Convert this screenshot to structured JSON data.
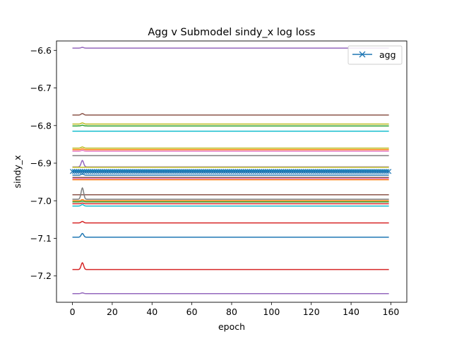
{
  "chart_data": {
    "type": "line",
    "title": "Agg v Submodel sindy_x log loss",
    "xlabel": "epoch",
    "ylabel": "sindy_x",
    "xlim": [
      -8,
      168
    ],
    "ylim": [
      -7.27,
      -6.575
    ],
    "xticks": [
      0,
      20,
      40,
      60,
      80,
      100,
      120,
      140,
      160
    ],
    "xtick_labels": [
      "0",
      "20",
      "40",
      "60",
      "80",
      "100",
      "120",
      "140",
      "160"
    ],
    "yticks": [
      -6.6,
      -6.7,
      -6.8,
      -6.9,
      -7.0,
      -7.1,
      -7.2
    ],
    "ytick_labels": [
      "−6.6",
      "−6.7",
      "−6.8",
      "−6.9",
      "−7.0",
      "−7.1",
      "−7.2"
    ],
    "legend": {
      "placement": "top-right",
      "entries": [
        "agg"
      ]
    },
    "grid": false,
    "x_range": [
      0,
      159
    ],
    "bump_epoch": 5,
    "agg": {
      "name": "agg",
      "value": -6.922,
      "color": "#1f77b4",
      "marker": "x"
    },
    "submodels": [
      {
        "value": -6.594,
        "color": "#9467bd",
        "bump": 0.002
      },
      {
        "value": -6.772,
        "color": "#8c564b",
        "bump": 0.004
      },
      {
        "value": -6.796,
        "color": "#bcbd22",
        "bump": 0.003
      },
      {
        "value": -6.801,
        "color": "#2ca02c",
        "bump": 0.002
      },
      {
        "value": -6.815,
        "color": "#17becf",
        "bump": 0.0
      },
      {
        "value": -6.86,
        "color": "#bcbd22",
        "bump": 0.003
      },
      {
        "value": -6.864,
        "color": "#ff7f0e",
        "bump": 0.002
      },
      {
        "value": -6.868,
        "color": "#e377c2",
        "bump": 0.002
      },
      {
        "value": -6.88,
        "color": "#7f7f7f",
        "bump": 0.0
      },
      {
        "value": -6.91,
        "color": "#9467bd",
        "bump": 0.017
      },
      {
        "value": -6.911,
        "color": "#bcbd22",
        "bump": 0.0
      },
      {
        "value": -6.919,
        "color": "#17becf",
        "bump": 0.0
      },
      {
        "value": -6.932,
        "color": "#1f77b4",
        "bump": 0.003
      },
      {
        "value": -6.938,
        "color": "#8c564b",
        "bump": 0.0
      },
      {
        "value": -6.941,
        "color": "#e377c2",
        "bump": 0.0
      },
      {
        "value": -6.944,
        "color": "#ff7f0e",
        "bump": 0.0
      },
      {
        "value": -6.984,
        "color": "#8c564b",
        "bump": 0.0
      },
      {
        "value": -6.996,
        "color": "#7f7f7f",
        "bump": 0.03
      },
      {
        "value": -7.0,
        "color": "#ff7f0e",
        "bump": 0.003
      },
      {
        "value": -7.003,
        "color": "#2ca02c",
        "bump": 0.002
      },
      {
        "value": -7.008,
        "color": "#d62728",
        "bump": 0.002
      },
      {
        "value": -7.014,
        "color": "#17becf",
        "bump": 0.004
      },
      {
        "value": -7.059,
        "color": "#d62728",
        "bump": 0.004
      },
      {
        "value": -7.097,
        "color": "#1f77b4",
        "bump": 0.01
      },
      {
        "value": -7.183,
        "color": "#d62728",
        "bump": 0.018
      },
      {
        "value": -7.247,
        "color": "#9467bd",
        "bump": 0.002
      }
    ]
  }
}
